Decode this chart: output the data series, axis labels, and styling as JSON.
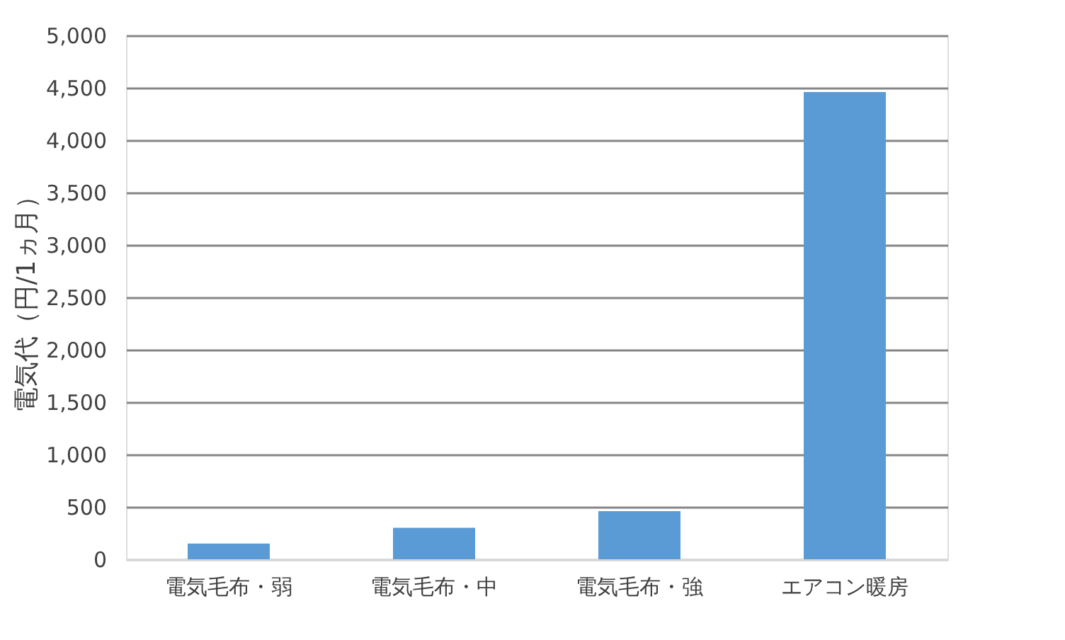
{
  "chart_data": {
    "type": "bar",
    "ylabel": "電気代（円/1ヵ月）",
    "categories": [
      "電気毛布・弱",
      "電気毛布・中",
      "電気毛布・強",
      "エアコン暖房"
    ],
    "values": [
      150,
      300,
      460,
      4460
    ],
    "color": "#5b9bd5",
    "ylim": [
      0,
      5000
    ],
    "yticks": [
      0,
      500,
      {
        "value": 1000,
        "label": "1,000"
      },
      {
        "value": 1500,
        "label": "1,500"
      },
      {
        "value": 2000,
        "label": "2,000"
      },
      {
        "value": 2500,
        "label": "2,500"
      },
      {
        "value": 3000,
        "label": "3,000"
      },
      {
        "value": 3500,
        "label": "3,500"
      },
      {
        "value": 4000,
        "label": "4,000"
      },
      {
        "value": 4500,
        "label": "4,500"
      },
      {
        "value": 5000,
        "label": "5,000"
      }
    ],
    "grid": "y"
  }
}
